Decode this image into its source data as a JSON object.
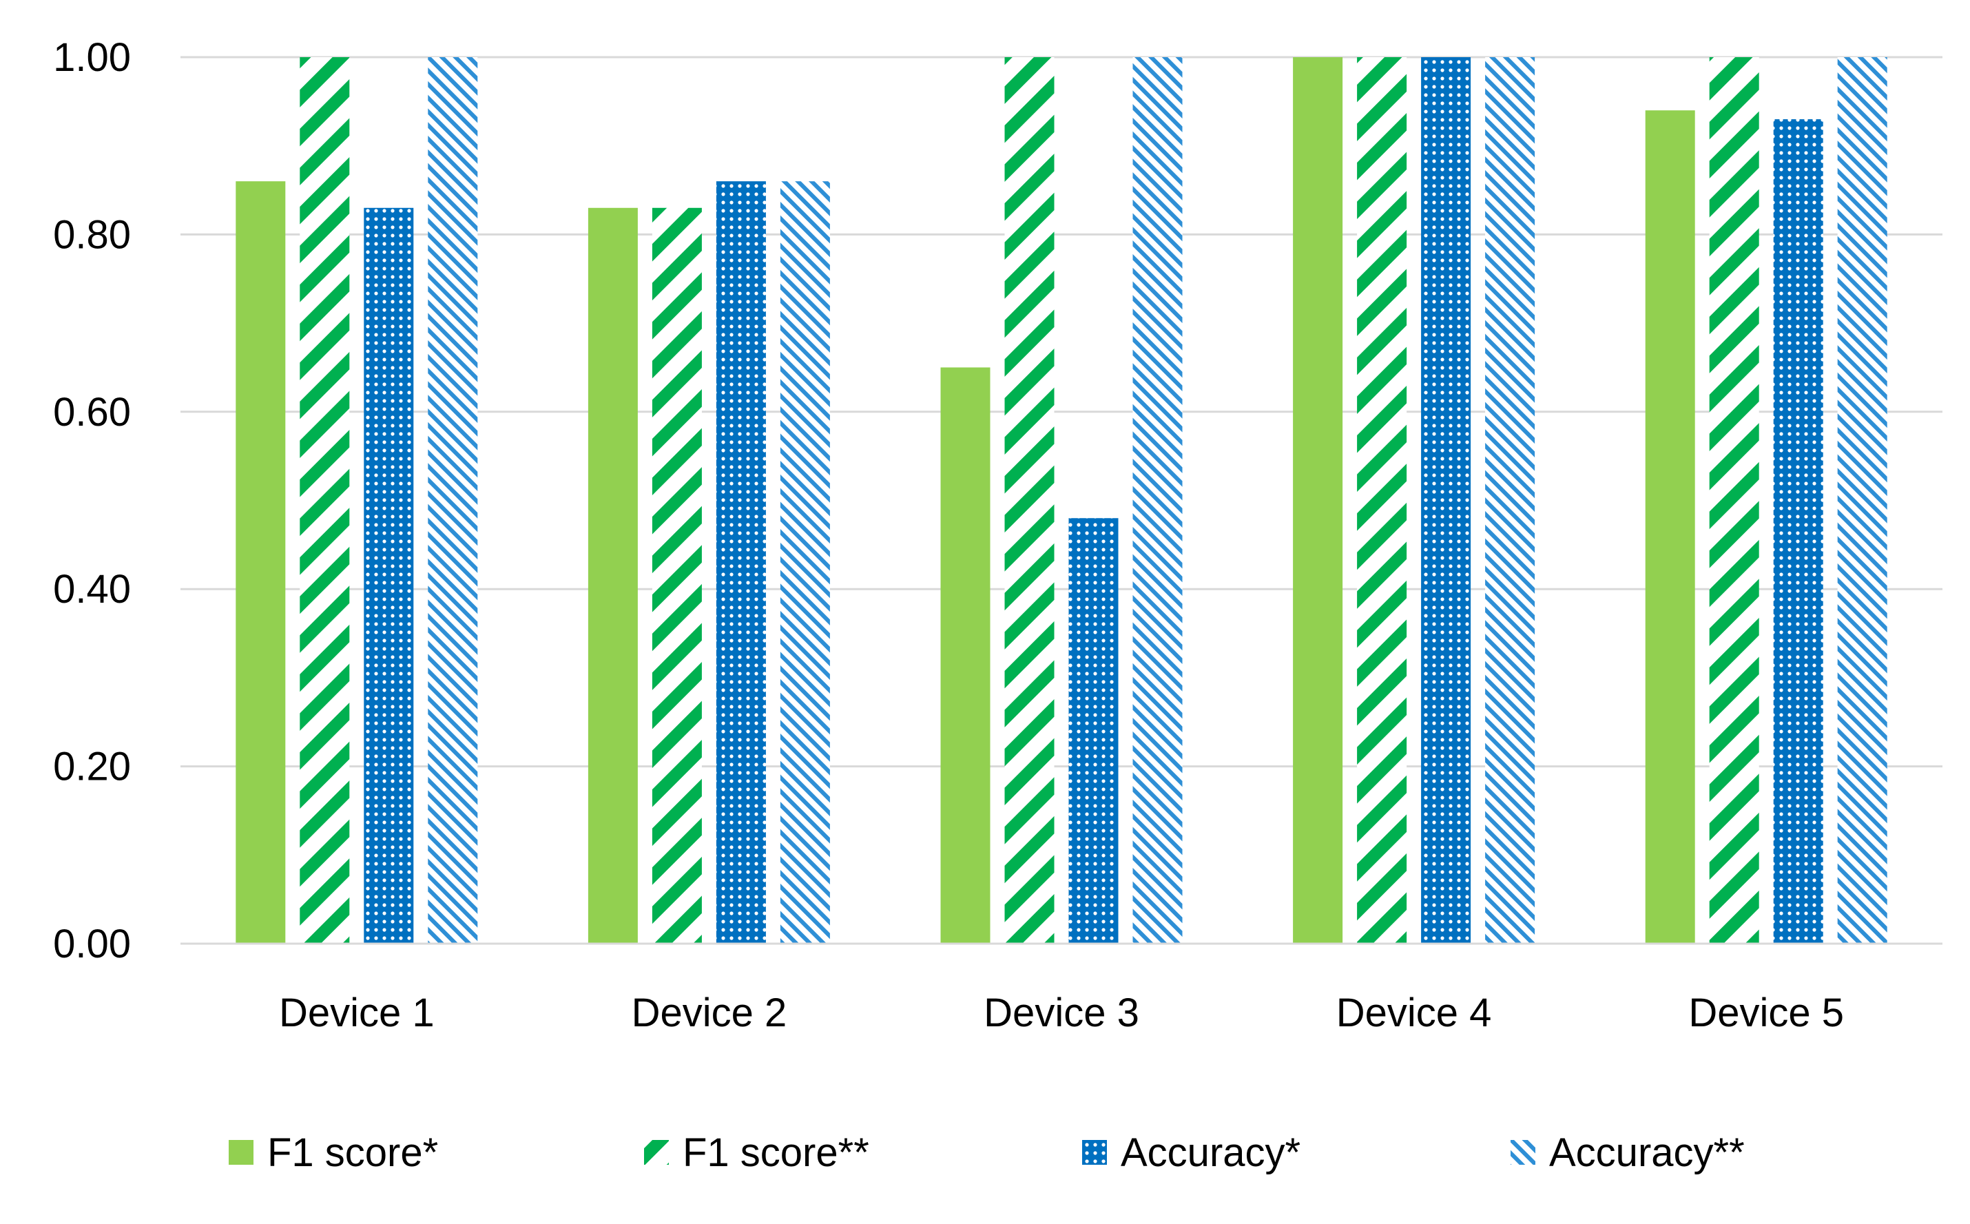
{
  "chart_data": {
    "type": "bar",
    "title": "",
    "xlabel": "",
    "ylabel": "",
    "categories": [
      "Device 1",
      "Device 2",
      "Device 3",
      "Device 4",
      "Device 5"
    ],
    "series": [
      {
        "name": "F1 score*",
        "values": [
          0.86,
          0.83,
          0.65,
          1.0,
          0.94
        ],
        "color": "#92d050",
        "pattern": "solid"
      },
      {
        "name": "F1 score**",
        "values": [
          1.0,
          0.83,
          1.0,
          1.0,
          1.0
        ],
        "color": "#00b050",
        "pattern": "wide-diagonal"
      },
      {
        "name": "Accuracy*",
        "values": [
          0.83,
          0.86,
          0.48,
          1.0,
          0.93
        ],
        "color": "#0070c0",
        "pattern": "dotted-grid"
      },
      {
        "name": "Accuracy**",
        "values": [
          1.0,
          0.86,
          1.0,
          1.0,
          1.0
        ],
        "color": "#2e8fd6",
        "pattern": "fine-diagonal"
      }
    ],
    "ylim": [
      0,
      1
    ],
    "yticks": [
      "0.00",
      "0.20",
      "0.40",
      "0.60",
      "0.80",
      "1.00"
    ],
    "grid": true,
    "legend_position": "bottom"
  }
}
